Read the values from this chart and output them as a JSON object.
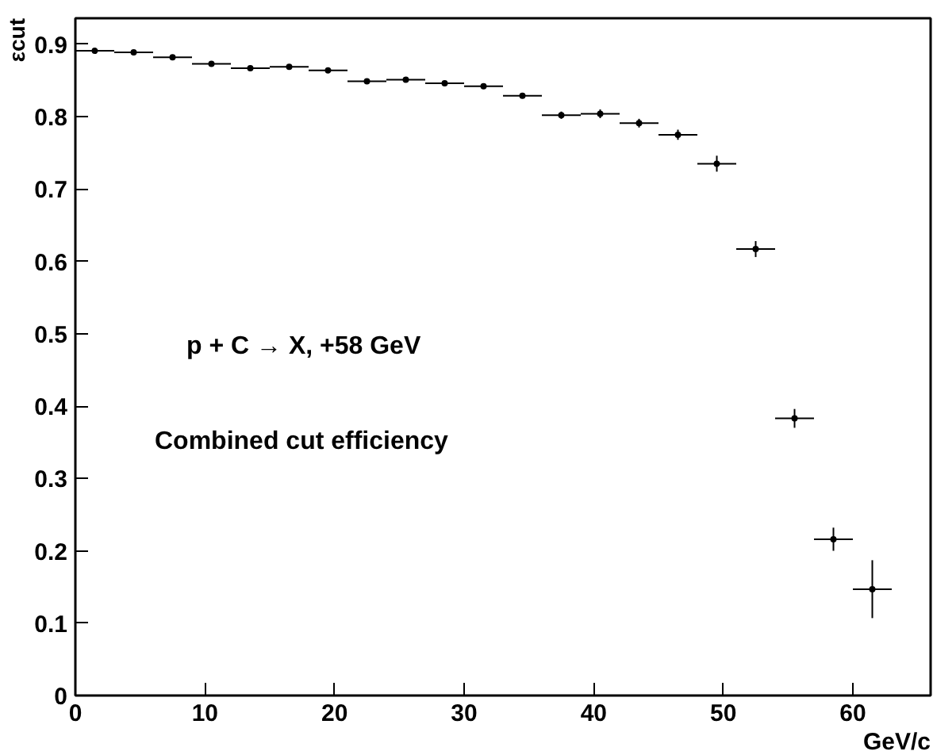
{
  "chart_data": {
    "type": "scatter",
    "x": [
      1.5,
      4.5,
      7.5,
      10.5,
      13.5,
      16.5,
      19.5,
      22.5,
      25.5,
      28.5,
      31.5,
      34.5,
      37.5,
      40.5,
      43.5,
      46.5,
      49.5,
      52.5,
      55.5,
      58.5,
      61.5
    ],
    "values": [
      0.891,
      0.889,
      0.882,
      0.873,
      0.867,
      0.869,
      0.864,
      0.849,
      0.851,
      0.846,
      0.842,
      0.829,
      0.802,
      0.804,
      0.791,
      0.775,
      0.735,
      0.617,
      0.383,
      0.216,
      0.147
    ],
    "errors": [
      0.003,
      0.003,
      0.003,
      0.003,
      0.003,
      0.003,
      0.003,
      0.003,
      0.003,
      0.003,
      0.003,
      0.003,
      0.005,
      0.006,
      0.006,
      0.007,
      0.011,
      0.011,
      0.013,
      0.016,
      0.04
    ],
    "xerrors": [
      1.5,
      1.5,
      1.5,
      1.5,
      1.5,
      1.5,
      1.5,
      1.5,
      1.5,
      1.5,
      1.5,
      1.5,
      1.5,
      1.5,
      1.5,
      1.5,
      1.5,
      1.5,
      1.5,
      1.5,
      1.5
    ],
    "color": "#000000",
    "marker": "circle",
    "xlabel": "GeV/c",
    "ylabel": "εcut",
    "xlim": [
      0,
      66
    ],
    "ylim": [
      0,
      0.936
    ],
    "xticks": [
      0,
      10,
      20,
      30,
      40,
      50,
      60
    ],
    "yticks": [
      0,
      0.1,
      0.2,
      0.3,
      0.4,
      0.5,
      0.6,
      0.7,
      0.8,
      0.9
    ],
    "grid": false,
    "annotations": [
      "p + C → X, +58 GeV",
      "Combined cut efficiency"
    ]
  }
}
